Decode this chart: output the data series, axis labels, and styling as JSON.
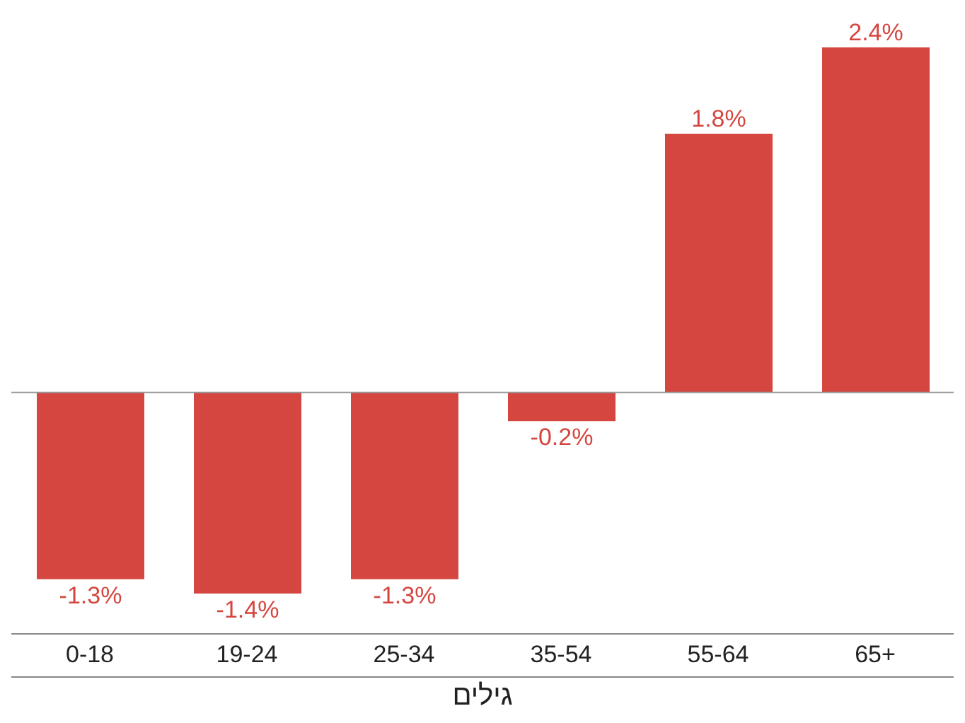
{
  "chart_data": {
    "type": "bar",
    "xlabel": "גילים",
    "categories": [
      "0-18",
      "19-24",
      "25-34",
      "35-54",
      "55-64",
      "65+"
    ],
    "values": [
      -1.3,
      -1.4,
      -1.3,
      -0.2,
      1.8,
      2.4
    ],
    "value_labels": [
      "-1.3%",
      "-1.4%",
      "-1.3%",
      "-0.2%",
      "1.8%",
      "2.4%"
    ],
    "color": "#d4463f"
  }
}
